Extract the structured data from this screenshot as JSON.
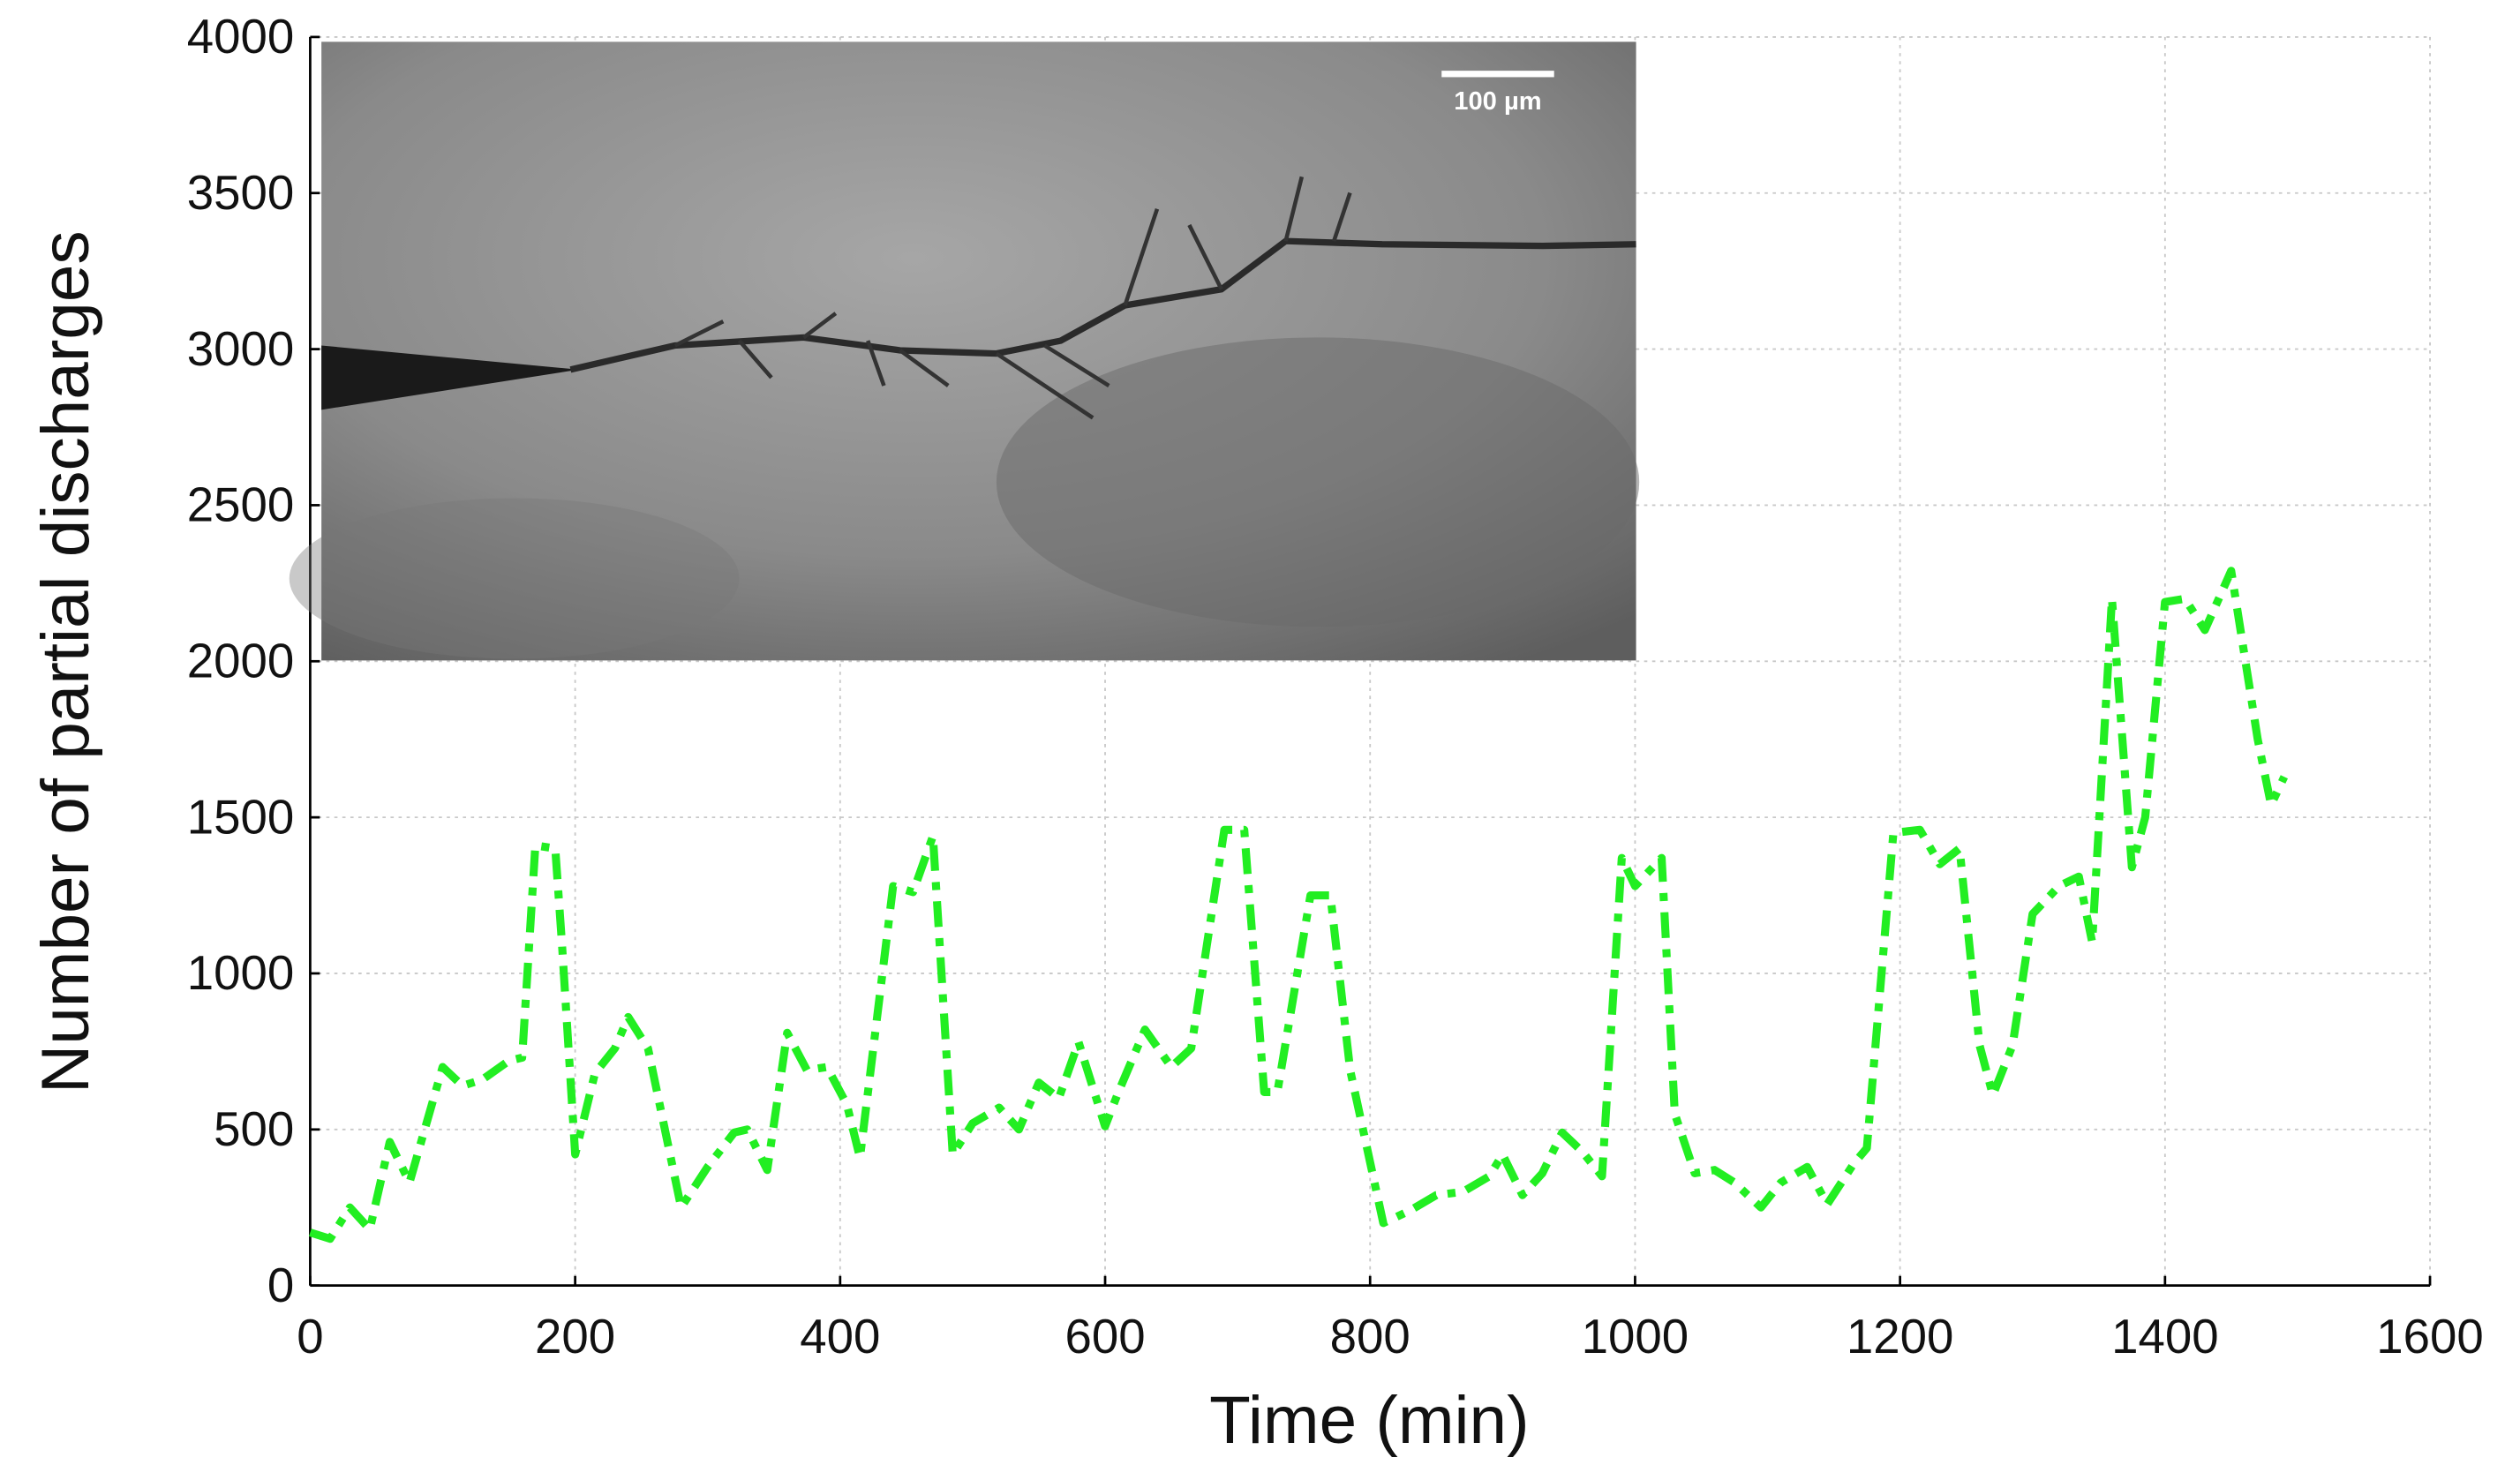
{
  "chart_data": {
    "type": "line",
    "x_label": "Time (min)",
    "y_label": "Number of partial discharges",
    "inset_label": "100 µm",
    "x": [
      0,
      15,
      30,
      45,
      60,
      75,
      100,
      115,
      130,
      150,
      160,
      170,
      185,
      190,
      200,
      215,
      230,
      240,
      255,
      280,
      300,
      320,
      330,
      345,
      360,
      375,
      390,
      405,
      415,
      440,
      455,
      470,
      485,
      500,
      520,
      535,
      550,
      565,
      580,
      600,
      610,
      630,
      650,
      665,
      690,
      705,
      720,
      730,
      755,
      770,
      785,
      810,
      830,
      850,
      870,
      890,
      900,
      915,
      930,
      945,
      960,
      975,
      990,
      1000,
      1020,
      1030,
      1045,
      1060,
      1075,
      1095,
      1110,
      1130,
      1145,
      1165,
      1175,
      1195,
      1215,
      1230,
      1245,
      1260,
      1270,
      1285,
      1300,
      1320,
      1335,
      1345,
      1360,
      1375,
      1385,
      1400,
      1415,
      1430,
      1450,
      1470,
      1480,
      1490
    ],
    "series": [
      {
        "color": "#22ee22",
        "values": [
          170,
          150,
          250,
          180,
          460,
          330,
          700,
          640,
          660,
          720,
          730,
          1410,
          1400,
          1100,
          420,
          680,
          760,
          860,
          760,
          250,
          380,
          490,
          500,
          370,
          810,
          690,
          700,
          580,
          410,
          1280,
          1260,
          1440,
          420,
          520,
          570,
          500,
          650,
          600,
          780,
          510,
          620,
          820,
          700,
          760,
          1460,
          1460,
          620,
          620,
          1250,
          1250,
          690,
          200,
          240,
          290,
          300,
          350,
          420,
          290,
          360,
          490,
          430,
          350,
          1370,
          1280,
          1370,
          550,
          360,
          370,
          330,
          250,
          330,
          380,
          260,
          390,
          440,
          1450,
          1460,
          1350,
          1400,
          770,
          610,
          770,
          1190,
          1280,
          1310,
          1100,
          2200,
          1340,
          1500,
          2190,
          2200,
          2100,
          2290,
          1750,
          1540,
          1630
        ]
      }
    ],
    "xlim": [
      0,
      1600
    ],
    "ylim": [
      0,
      4000
    ],
    "xticks": [
      0,
      200,
      400,
      600,
      800,
      1000,
      1200,
      1400,
      1600
    ],
    "yticks": [
      0,
      500,
      1000,
      1500,
      2000,
      2500,
      3000,
      3500,
      4000
    ],
    "grid": true
  }
}
